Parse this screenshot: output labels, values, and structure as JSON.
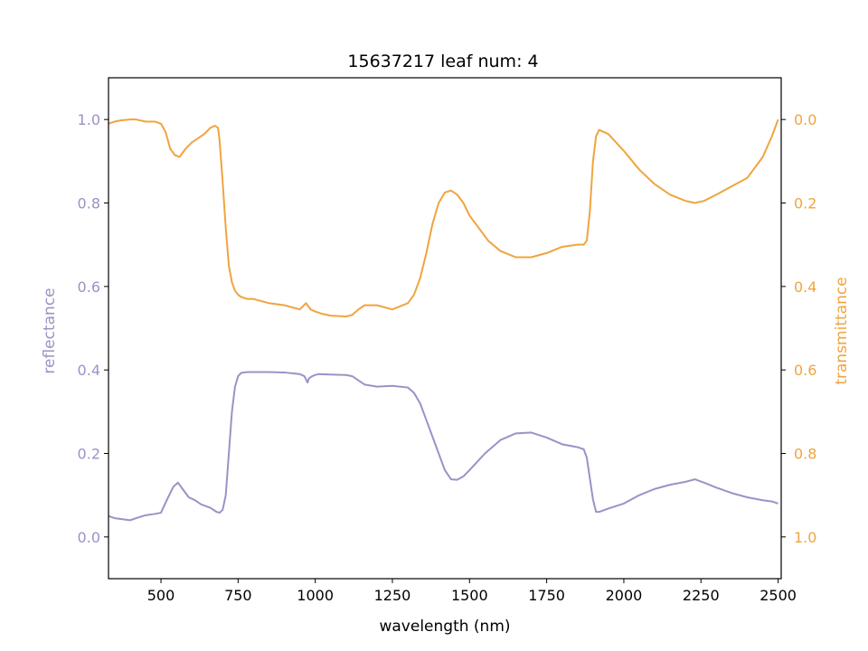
{
  "chart_data": {
    "type": "line",
    "title": "15637217 leaf num: 4",
    "xlabel": "wavelength (nm)",
    "ylabel_left": "reflectance",
    "ylabel_right": "transmittance",
    "xlim": [
      330,
      2510
    ],
    "ylim_left": [
      -0.1,
      1.1
    ],
    "ylim_right": [
      1.1,
      -0.1
    ],
    "right_axis_inverted": true,
    "grid": false,
    "x_ticks": [
      500,
      750,
      1000,
      1250,
      1500,
      1750,
      2000,
      2250,
      2500
    ],
    "x_tick_labels": [
      "500",
      "750",
      "1000",
      "1250",
      "1500",
      "1750",
      "2000",
      "2250",
      "2500"
    ],
    "y_left_ticks": [
      0.0,
      0.2,
      0.4,
      0.6,
      0.8,
      1.0
    ],
    "y_left_tick_labels": [
      "0.0",
      "0.2",
      "0.4",
      "0.6",
      "0.8",
      "1.0"
    ],
    "y_right_ticks": [
      0.0,
      0.2,
      0.4,
      0.6,
      0.8,
      1.0
    ],
    "y_right_tick_labels": [
      "0.0",
      "0.2",
      "0.4",
      "0.6",
      "0.8",
      "1.0"
    ],
    "series": [
      {
        "axis": "left",
        "color": "#9b92c6",
        "x": [
          330,
          350,
          370,
          400,
          420,
          450,
          480,
          500,
          520,
          540,
          555,
          570,
          590,
          610,
          630,
          660,
          680,
          690,
          700,
          710,
          720,
          730,
          740,
          750,
          760,
          780,
          800,
          850,
          900,
          950,
          965,
          975,
          980,
          990,
          1000,
          1010,
          1050,
          1100,
          1120,
          1140,
          1160,
          1200,
          1250,
          1300,
          1320,
          1340,
          1360,
          1380,
          1400,
          1420,
          1440,
          1460,
          1480,
          1500,
          1550,
          1600,
          1650,
          1700,
          1750,
          1800,
          1850,
          1870,
          1880,
          1890,
          1900,
          1910,
          1920,
          1950,
          2000,
          2050,
          2100,
          2150,
          2200,
          2230,
          2260,
          2300,
          2350,
          2400,
          2450,
          2480,
          2500
        ],
        "y": [
          0.05,
          0.045,
          0.043,
          0.04,
          0.045,
          0.052,
          0.055,
          0.058,
          0.09,
          0.12,
          0.13,
          0.115,
          0.095,
          0.088,
          0.078,
          0.07,
          0.06,
          0.058,
          0.065,
          0.1,
          0.2,
          0.3,
          0.36,
          0.385,
          0.393,
          0.395,
          0.395,
          0.395,
          0.394,
          0.39,
          0.385,
          0.37,
          0.38,
          0.385,
          0.388,
          0.39,
          0.389,
          0.388,
          0.385,
          0.375,
          0.365,
          0.36,
          0.362,
          0.358,
          0.345,
          0.32,
          0.28,
          0.24,
          0.2,
          0.16,
          0.138,
          0.137,
          0.145,
          0.16,
          0.2,
          0.232,
          0.248,
          0.25,
          0.238,
          0.222,
          0.215,
          0.21,
          0.19,
          0.14,
          0.09,
          0.06,
          0.06,
          0.068,
          0.08,
          0.1,
          0.115,
          0.125,
          0.132,
          0.138,
          0.13,
          0.118,
          0.105,
          0.095,
          0.088,
          0.085,
          0.08
        ]
      },
      {
        "axis": "right",
        "color": "#f0a43f",
        "x": [
          330,
          350,
          370,
          400,
          420,
          450,
          480,
          500,
          515,
          530,
          545,
          560,
          580,
          600,
          620,
          640,
          660,
          675,
          685,
          690,
          700,
          710,
          720,
          730,
          740,
          750,
          760,
          780,
          800,
          850,
          900,
          950,
          970,
          985,
          1000,
          1020,
          1050,
          1100,
          1120,
          1140,
          1160,
          1200,
          1250,
          1300,
          1320,
          1340,
          1360,
          1380,
          1400,
          1420,
          1440,
          1460,
          1480,
          1500,
          1530,
          1560,
          1600,
          1650,
          1700,
          1750,
          1800,
          1850,
          1870,
          1880,
          1890,
          1900,
          1910,
          1920,
          1950,
          2000,
          2050,
          2100,
          2150,
          2200,
          2230,
          2260,
          2300,
          2350,
          2400,
          2450,
          2480,
          2500
        ],
        "y": [
          0.01,
          0.005,
          0.002,
          0.0,
          0.0,
          0.005,
          0.005,
          0.01,
          0.03,
          0.07,
          0.085,
          0.09,
          0.07,
          0.055,
          0.045,
          0.035,
          0.02,
          0.015,
          0.02,
          0.05,
          0.15,
          0.26,
          0.35,
          0.39,
          0.41,
          0.42,
          0.425,
          0.43,
          0.43,
          0.44,
          0.445,
          0.455,
          0.44,
          0.455,
          0.46,
          0.465,
          0.47,
          0.472,
          0.468,
          0.455,
          0.445,
          0.445,
          0.455,
          0.44,
          0.42,
          0.38,
          0.32,
          0.25,
          0.2,
          0.175,
          0.17,
          0.18,
          0.2,
          0.23,
          0.26,
          0.29,
          0.315,
          0.33,
          0.33,
          0.32,
          0.305,
          0.3,
          0.3,
          0.29,
          0.22,
          0.1,
          0.04,
          0.025,
          0.035,
          0.075,
          0.12,
          0.155,
          0.18,
          0.195,
          0.2,
          0.195,
          0.18,
          0.16,
          0.14,
          0.09,
          0.04,
          0.0
        ]
      }
    ]
  }
}
